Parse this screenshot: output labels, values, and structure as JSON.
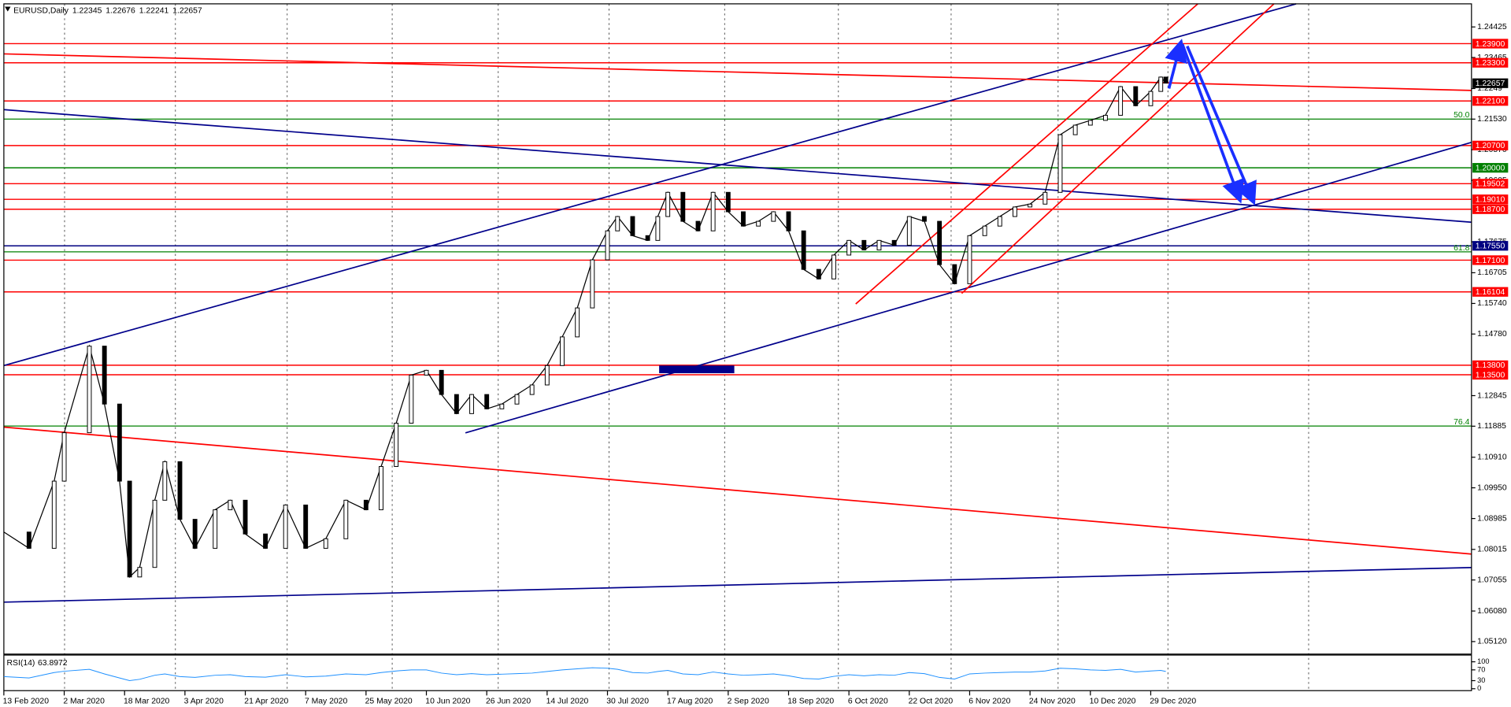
{
  "chart_data": {
    "type": "candlestick",
    "title": "EURUSD,Daily",
    "ohlc": [
      1.22345,
      1.22676,
      1.22241,
      1.22657
    ],
    "xlim": [
      0,
      291
    ],
    "xticks": [
      {
        "value": 0,
        "label": "13 Feb 2020"
      },
      {
        "value": 12,
        "label": "2 Mar 2020"
      },
      {
        "value": 24,
        "label": "18 Mar 2020"
      },
      {
        "value": 36,
        "label": "3 Apr 2020"
      },
      {
        "value": 48,
        "label": "21 Apr 2020"
      },
      {
        "value": 60,
        "label": "7 May 2020"
      },
      {
        "value": 72,
        "label": "25 May 2020"
      },
      {
        "value": 84,
        "label": "10 Jun 2020"
      },
      {
        "value": 96,
        "label": "26 Jun 2020"
      },
      {
        "value": 108,
        "label": "14 Jul 2020"
      },
      {
        "value": 120,
        "label": "30 Jul 2020"
      },
      {
        "value": 132,
        "label": "17 Aug 2020"
      },
      {
        "value": 144,
        "label": "2 Sep 2020"
      },
      {
        "value": 156,
        "label": "18 Sep 2020"
      },
      {
        "value": 168,
        "label": "6 Oct 2020"
      },
      {
        "value": 180,
        "label": "22 Oct 2020"
      },
      {
        "value": 192,
        "label": "6 Nov 2020"
      },
      {
        "value": 204,
        "label": "24 Nov 2020"
      },
      {
        "value": 216,
        "label": "10 Dec 2020"
      },
      {
        "value": 228,
        "label": "29 Dec 2020"
      }
    ],
    "x": [
      0,
      5,
      10,
      12,
      17,
      20,
      23,
      25,
      27,
      30,
      32,
      35,
      38,
      42,
      45,
      48,
      52,
      56,
      60,
      64,
      68,
      72,
      75,
      78,
      81,
      84,
      87,
      90,
      93,
      96,
      99,
      102,
      105,
      108,
      111,
      114,
      117,
      120,
      122,
      125,
      128,
      130,
      132,
      135,
      138,
      141,
      144,
      147,
      150,
      153,
      156,
      159,
      162,
      165,
      168,
      171,
      174,
      177,
      180,
      183,
      186,
      189,
      192,
      195,
      198,
      201,
      204,
      207,
      210,
      213,
      216,
      219,
      222,
      225,
      228,
      230,
      231
    ],
    "series": [
      {
        "color": "#000000",
        "values": [
          1.0856,
          1.0805,
          1.1016,
          1.1168,
          1.144,
          1.1258,
          1.1016,
          1.0715,
          1.0745,
          1.0956,
          1.1077,
          1.0896,
          1.0805,
          1.0926,
          1.0956,
          1.085,
          1.0805,
          1.0941,
          1.0805,
          1.0835,
          1.0956,
          1.0926,
          1.1062,
          1.1198,
          1.1349,
          1.1364,
          1.1288,
          1.1228,
          1.1288,
          1.1243,
          1.1258,
          1.1288,
          1.1318,
          1.1379,
          1.1469,
          1.156,
          1.1711,
          1.1802,
          1.1847,
          1.1787,
          1.1772,
          1.1847,
          1.1923,
          1.1832,
          1.1802,
          1.1923,
          1.1862,
          1.1817,
          1.1832,
          1.1862,
          1.1802,
          1.1681,
          1.1651,
          1.1726,
          1.1772,
          1.1742,
          1.1772,
          1.1757,
          1.1847,
          1.1832,
          1.1696,
          1.1636,
          1.1787,
          1.1817,
          1.1847,
          1.1877,
          1.1886,
          1.1923,
          1.2104,
          1.2134,
          1.2149,
          1.2165,
          1.2255,
          1.2195,
          1.224,
          1.2285,
          1.2266
        ]
      }
    ],
    "ylim": [
      1.04727,
      1.25271
    ],
    "yticks": [
      1.24425,
      1.23465,
      1.2249,
      {
        "value": 1.2153,
        "label": "1.21530"
      },
      {
        "value": 1.2057,
        "label": "1.20570"
      },
      1.19605,
      1.17675,
      1.16705,
      {
        "value": 1.1574,
        "label": "1.15740"
      },
      {
        "value": 1.1478,
        "label": "1.14780"
      },
      1.12845,
      1.11885,
      {
        "value": 1.1091,
        "label": "1.10910"
      },
      {
        "value": 1.0995,
        "label": "1.09950"
      },
      1.08985,
      1.08015,
      1.07055,
      {
        "value": 1.0608,
        "label": "1.06080"
      },
      {
        "value": 1.0512,
        "label": "1.05120"
      }
    ],
    "levels": [
      {
        "value": 1.239,
        "label": "1.23900",
        "color": "#ff0000"
      },
      {
        "value": 1.233,
        "label": "1.23300",
        "color": "#ff0000"
      },
      {
        "value": 1.221,
        "label": "1.22100",
        "color": "#ff0000"
      },
      {
        "value": 1.207,
        "label": "1.20700",
        "color": "#ff0000"
      },
      {
        "value": 1.2,
        "label": "1.20000",
        "color": "#008000"
      },
      {
        "value": 1.19502,
        "color": "#ff0000"
      },
      {
        "value": 1.1901,
        "label": "1.19010",
        "color": "#ff0000"
      },
      {
        "value": 1.187,
        "label": "1.18700",
        "color": "#ff0000"
      },
      {
        "value": 1.1755,
        "label": "1.17550",
        "color": "#000080"
      },
      {
        "value": 1.171,
        "label": "1.17100",
        "color": "#ff0000"
      },
      {
        "value": 1.16104,
        "color": "#ff0000"
      },
      {
        "value": 1.138,
        "label": "1.13800",
        "color": "#ff0000"
      },
      {
        "value": 1.135,
        "label": "1.13500",
        "color": "#ff0000"
      }
    ],
    "fib_levels": [
      {
        "value": 1.2153,
        "label": "50.0",
        "color": "#008000"
      },
      {
        "value": 1.1736,
        "label": 61.8,
        "color": "#008000"
      },
      {
        "value": 1.1189,
        "label": 76.4,
        "color": "#008000"
      }
    ],
    "rsi": {
      "label": "RSI(14)",
      "value": 63.8972,
      "ylim": [
        0,
        100
      ],
      "yticks": [
        100,
        70,
        30,
        0
      ],
      "color": "#1e90ff",
      "values": [
        45,
        40,
        60,
        65,
        72,
        55,
        40,
        30,
        35,
        50,
        55,
        45,
        42,
        50,
        52,
        45,
        43,
        52,
        44,
        47,
        55,
        52,
        60,
        66,
        70,
        70,
        58,
        52,
        56,
        52,
        54,
        56,
        58,
        64,
        70,
        74,
        78,
        76,
        72,
        60,
        58,
        64,
        68,
        55,
        52,
        62,
        55,
        50,
        52,
        55,
        48,
        38,
        36,
        46,
        52,
        48,
        52,
        50,
        60,
        56,
        42,
        36,
        55,
        58,
        60,
        62,
        62,
        66,
        76,
        74,
        70,
        68,
        72,
        62,
        66,
        68,
        64
      ]
    }
  }
}
